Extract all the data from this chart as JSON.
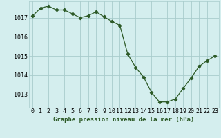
{
  "x": [
    0,
    1,
    2,
    3,
    4,
    5,
    6,
    7,
    8,
    9,
    10,
    11,
    12,
    13,
    14,
    15,
    16,
    17,
    18,
    19,
    20,
    21,
    22,
    23
  ],
  "y": [
    1017.1,
    1017.5,
    1017.6,
    1017.4,
    1017.4,
    1017.2,
    1017.0,
    1017.1,
    1017.3,
    1017.05,
    1016.8,
    1016.6,
    1015.1,
    1014.4,
    1013.9,
    1013.1,
    1012.6,
    1012.6,
    1012.75,
    1013.3,
    1013.85,
    1014.45,
    1014.75,
    1015.0
  ],
  "line_color": "#2d5a27",
  "marker": "D",
  "markersize": 2.2,
  "linewidth": 0.9,
  "bg_color": "#d4eeee",
  "grid_color": "#a8cccc",
  "xlabel": "Graphe pression niveau de la mer (hPa)",
  "xlabel_fontsize": 6.5,
  "tick_fontsize": 6.0,
  "yticks": [
    1013,
    1014,
    1015,
    1016,
    1017
  ],
  "ylim": [
    1012.3,
    1017.85
  ],
  "xlim": [
    -0.5,
    23.5
  ],
  "xticks": [
    0,
    1,
    2,
    3,
    4,
    5,
    6,
    7,
    8,
    9,
    10,
    11,
    12,
    13,
    14,
    15,
    16,
    17,
    18,
    19,
    20,
    21,
    22,
    23
  ]
}
